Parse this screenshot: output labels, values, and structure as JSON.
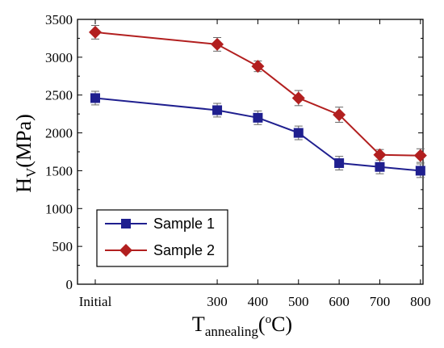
{
  "chart_data": {
    "type": "line",
    "categories": [
      "Initial",
      "300",
      "400",
      "500",
      "600",
      "700",
      "800"
    ],
    "x": [
      0,
      300,
      400,
      500,
      600,
      700,
      800
    ],
    "series": [
      {
        "name": "Sample 1",
        "color": "#1f1f8f",
        "marker": "square",
        "values": [
          2460,
          2300,
          2200,
          2000,
          1600,
          1550,
          1500
        ],
        "errors": [
          90,
          90,
          90,
          90,
          90,
          90,
          90
        ]
      },
      {
        "name": "Sample 2",
        "color": "#b21f1f",
        "marker": "diamond",
        "values": [
          3330,
          3170,
          2880,
          2460,
          2240,
          1710,
          1700
        ],
        "errors": [
          90,
          90,
          70,
          100,
          100,
          70,
          90
        ]
      }
    ],
    "ylim": [
      0,
      3500
    ],
    "yticks": [
      0,
      500,
      1000,
      1500,
      2000,
      2500,
      3000,
      3500
    ],
    "ylabel_main": "H",
    "ylabel_sub": "V",
    "ylabel_rest": "(MPa)",
    "xlabel_main": "T",
    "xlabel_sub": "annealing",
    "xlabel_rest": "(",
    "xlabel_degree": "o",
    "xlabel_unit": "C)",
    "grid": false,
    "legend_position": "bottom-left"
  }
}
